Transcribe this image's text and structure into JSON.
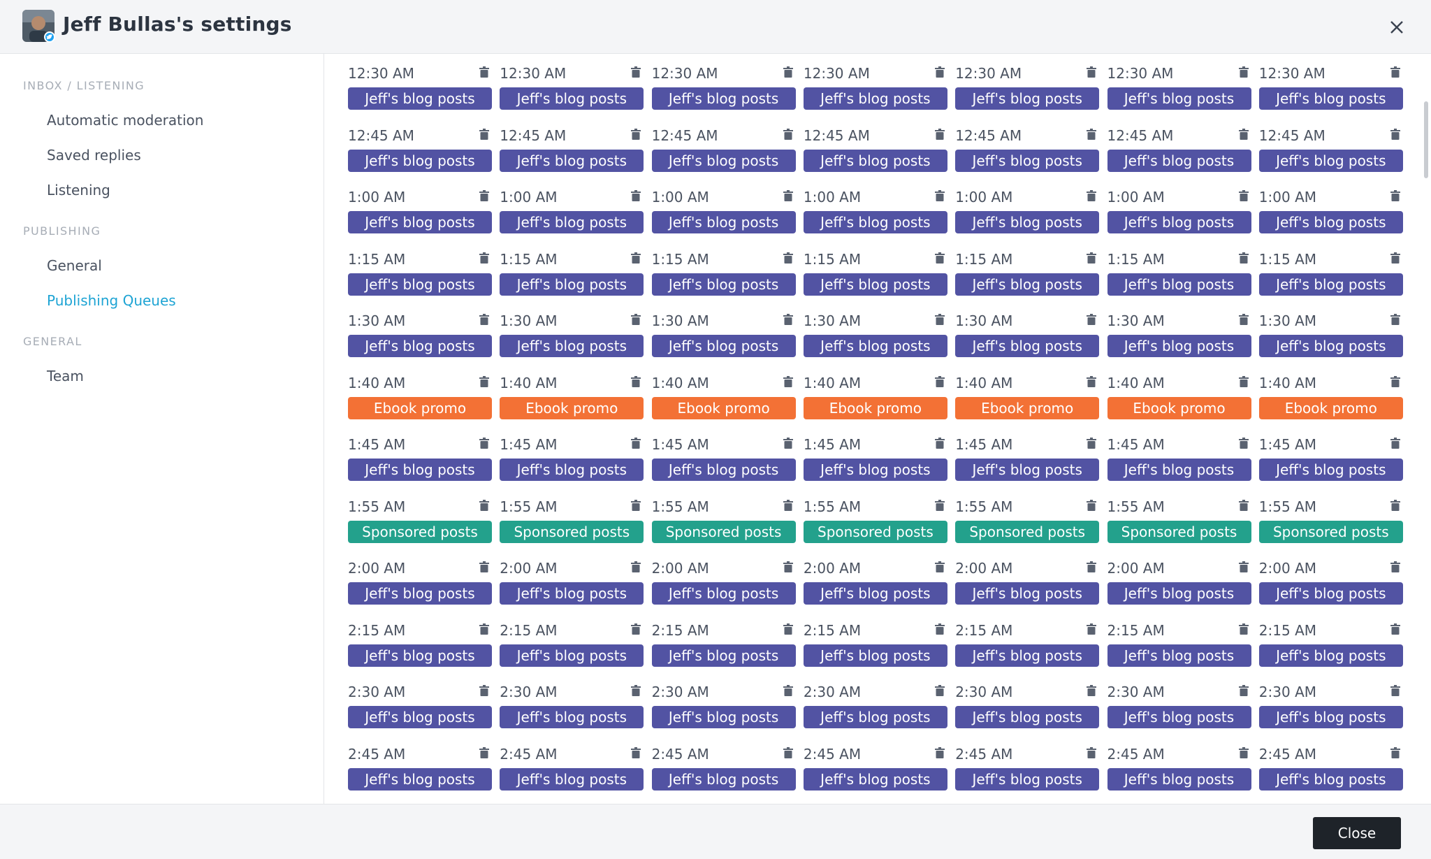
{
  "header": {
    "title": "Jeff Bullas's settings"
  },
  "sidebar": {
    "sections": [
      {
        "label": "INBOX / LISTENING",
        "items": [
          "Automatic moderation",
          "Saved replies",
          "Listening"
        ]
      },
      {
        "label": "PUBLISHING",
        "items": [
          "General",
          "Publishing Queues"
        ]
      },
      {
        "label": "GENERAL",
        "items": [
          "Team"
        ]
      }
    ],
    "active_item": "Publishing Queues"
  },
  "queue": {
    "days_per_row": 7,
    "slots": [
      {
        "time": "12:30 AM",
        "queue": "Jeff's blog posts",
        "color": "#5253a3"
      },
      {
        "time": "12:45 AM",
        "queue": "Jeff's blog posts",
        "color": "#5253a3"
      },
      {
        "time": "1:00 AM",
        "queue": "Jeff's blog posts",
        "color": "#5253a3"
      },
      {
        "time": "1:15 AM",
        "queue": "Jeff's blog posts",
        "color": "#5253a3"
      },
      {
        "time": "1:30 AM",
        "queue": "Jeff's blog posts",
        "color": "#5253a3"
      },
      {
        "time": "1:40 AM",
        "queue": "Ebook promo",
        "color": "#f37135"
      },
      {
        "time": "1:45 AM",
        "queue": "Jeff's blog posts",
        "color": "#5253a3"
      },
      {
        "time": "1:55 AM",
        "queue": "Sponsored posts",
        "color": "#23a18c"
      },
      {
        "time": "2:00 AM",
        "queue": "Jeff's blog posts",
        "color": "#5253a3"
      },
      {
        "time": "2:15 AM",
        "queue": "Jeff's blog posts",
        "color": "#5253a3"
      },
      {
        "time": "2:30 AM",
        "queue": "Jeff's blog posts",
        "color": "#5253a3"
      },
      {
        "time": "2:45 AM",
        "queue": "Jeff's blog posts",
        "color": "#5253a3"
      }
    ]
  },
  "footer": {
    "close_label": "Close"
  },
  "icons": {
    "avatar": "user-avatar",
    "network_badge": "twitter-icon",
    "close": "close-icon",
    "slot_delete": "trash-icon"
  }
}
